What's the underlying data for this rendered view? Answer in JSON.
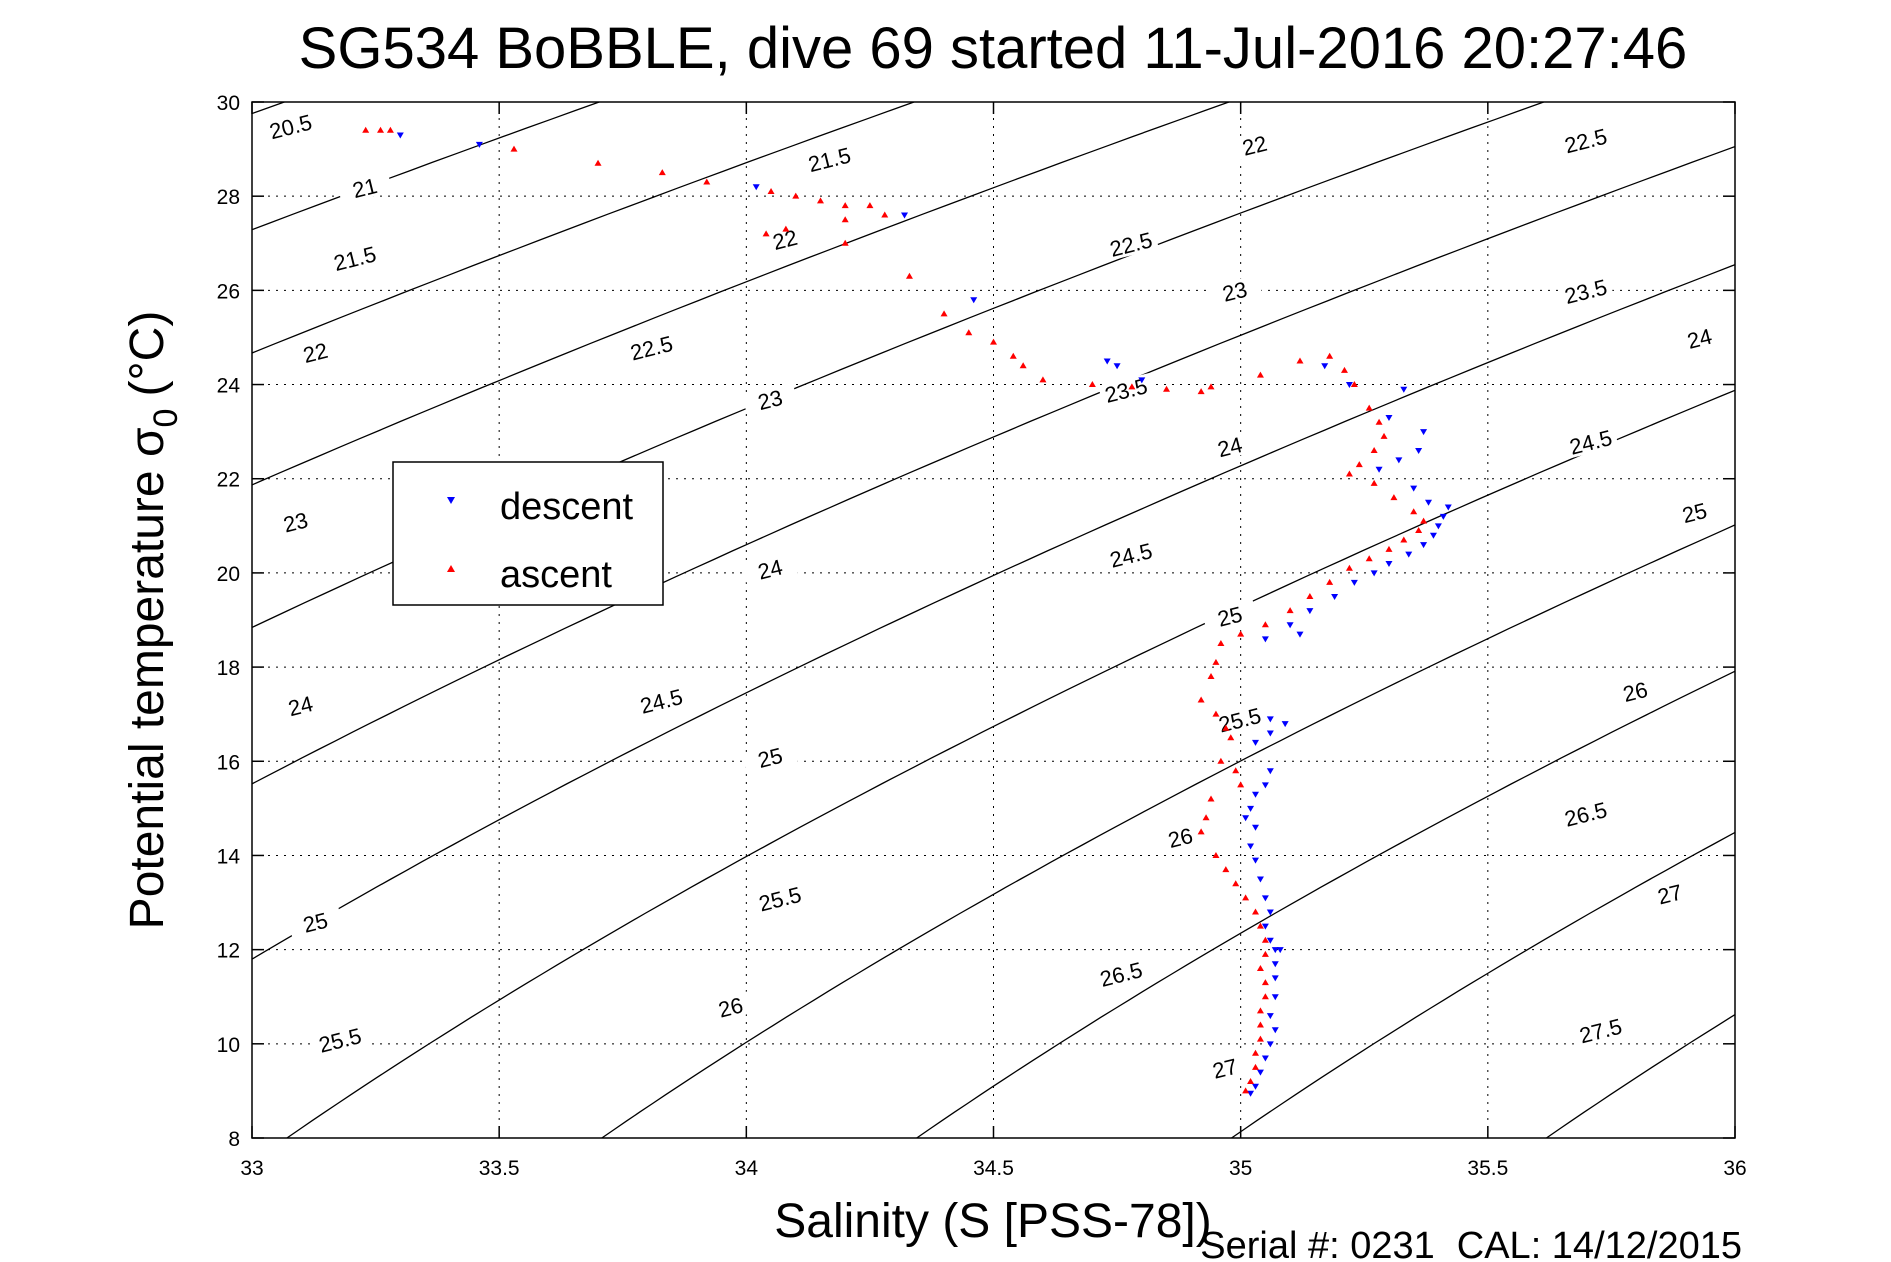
{
  "chart_data": {
    "type": "scatter",
    "title": "SG534 BoBBLE, dive 69 started 11-Jul-2016 20:27:46",
    "xlabel": "Salinity (S [PSS-78])",
    "ylabel": "Potential temperature σ",
    "ylabel_sub": "0",
    "ylabel_unit": "(°C)",
    "xlim": [
      33,
      36
    ],
    "ylim": [
      8,
      30
    ],
    "grid": true,
    "xticks": [
      "33",
      "33.5",
      "34",
      "34.5",
      "35",
      "35.5",
      "36"
    ],
    "yticks": [
      "8",
      "10",
      "12",
      "14",
      "16",
      "18",
      "20",
      "22",
      "24",
      "26",
      "28",
      "30"
    ],
    "legend": {
      "placement": "center-left",
      "entries": [
        {
          "name": "descent",
          "color": "#0000ff",
          "marker": "triangle-down"
        },
        {
          "name": "ascent",
          "color": "#ff0000",
          "marker": "triangle-up"
        }
      ]
    },
    "density_contours": {
      "color": "#000000",
      "levels": [
        20.5,
        21,
        21.5,
        22,
        22.5,
        23,
        23.5,
        24,
        24.5,
        25,
        25.5,
        26,
        26.5,
        27,
        27.5
      ],
      "label_points": [
        {
          "text": "20.5",
          "x": 33.08,
          "y": 29.4
        },
        {
          "text": "21",
          "x": 33.23,
          "y": 28.1
        },
        {
          "text": "21.5",
          "x": 33.21,
          "y": 26.6
        },
        {
          "text": "22",
          "x": 33.13,
          "y": 24.6
        },
        {
          "text": "22.5",
          "x": 33.81,
          "y": 24.7
        },
        {
          "text": "23",
          "x": 33.09,
          "y": 21.0
        },
        {
          "text": "23",
          "x": 34.05,
          "y": 23.6
        },
        {
          "text": "24",
          "x": 33.1,
          "y": 17.1
        },
        {
          "text": "24.5",
          "x": 33.83,
          "y": 17.2
        },
        {
          "text": "24",
          "x": 34.05,
          "y": 20.0
        },
        {
          "text": "25",
          "x": 34.05,
          "y": 16.0
        },
        {
          "text": "25",
          "x": 33.13,
          "y": 12.5
        },
        {
          "text": "25.5",
          "x": 34.07,
          "y": 13.0
        },
        {
          "text": "25.5",
          "x": 33.18,
          "y": 10.0
        },
        {
          "text": "26",
          "x": 33.97,
          "y": 10.7
        },
        {
          "text": "21.5",
          "x": 34.17,
          "y": 28.7
        },
        {
          "text": "22",
          "x": 34.08,
          "y": 27.0
        },
        {
          "text": "22",
          "x": 35.03,
          "y": 29.0
        },
        {
          "text": "22.5",
          "x": 34.78,
          "y": 26.9
        },
        {
          "text": "23",
          "x": 34.99,
          "y": 25.9
        },
        {
          "text": "23.5",
          "x": 34.77,
          "y": 23.8
        },
        {
          "text": "24",
          "x": 34.98,
          "y": 22.6
        },
        {
          "text": "24.5",
          "x": 34.78,
          "y": 20.3
        },
        {
          "text": "25",
          "x": 34.98,
          "y": 19.0
        },
        {
          "text": "25.5",
          "x": 35.0,
          "y": 16.8
        },
        {
          "text": "26",
          "x": 34.88,
          "y": 14.3
        },
        {
          "text": "26.5",
          "x": 34.76,
          "y": 11.4
        },
        {
          "text": "27",
          "x": 34.97,
          "y": 9.4
        },
        {
          "text": "22.5",
          "x": 35.7,
          "y": 29.1
        },
        {
          "text": "23.5",
          "x": 35.7,
          "y": 25.9
        },
        {
          "text": "24",
          "x": 35.93,
          "y": 24.9
        },
        {
          "text": "24.5",
          "x": 35.71,
          "y": 22.7
        },
        {
          "text": "25",
          "x": 35.92,
          "y": 21.2
        },
        {
          "text": "26",
          "x": 35.8,
          "y": 17.4
        },
        {
          "text": "26.5",
          "x": 35.7,
          "y": 14.8
        },
        {
          "text": "27",
          "x": 35.87,
          "y": 13.1
        },
        {
          "text": "27.5",
          "x": 35.73,
          "y": 10.2
        }
      ]
    },
    "series": [
      {
        "name": "descent",
        "color": "#0000ff",
        "marker": "triangle-down",
        "points": [
          [
            33.3,
            29.3
          ],
          [
            33.46,
            29.1
          ],
          [
            34.02,
            28.2
          ],
          [
            34.32,
            27.6
          ],
          [
            34.46,
            25.8
          ],
          [
            34.73,
            24.5
          ],
          [
            34.75,
            24.4
          ],
          [
            34.8,
            24.1
          ],
          [
            35.17,
            24.4
          ],
          [
            35.22,
            24.0
          ],
          [
            35.33,
            23.9
          ],
          [
            35.3,
            23.3
          ],
          [
            35.37,
            23.0
          ],
          [
            35.36,
            22.6
          ],
          [
            35.32,
            22.4
          ],
          [
            35.28,
            22.2
          ],
          [
            35.35,
            21.8
          ],
          [
            35.38,
            21.5
          ],
          [
            35.42,
            21.4
          ],
          [
            35.41,
            21.2
          ],
          [
            35.4,
            21.0
          ],
          [
            35.39,
            20.8
          ],
          [
            35.37,
            20.6
          ],
          [
            35.34,
            20.4
          ],
          [
            35.3,
            20.2
          ],
          [
            35.27,
            20.0
          ],
          [
            35.23,
            19.8
          ],
          [
            35.19,
            19.5
          ],
          [
            35.14,
            19.2
          ],
          [
            35.1,
            18.9
          ],
          [
            35.05,
            18.6
          ],
          [
            35.12,
            18.7
          ],
          [
            35.06,
            16.9
          ],
          [
            35.09,
            16.8
          ],
          [
            35.06,
            16.6
          ],
          [
            35.03,
            16.4
          ],
          [
            35.06,
            15.8
          ],
          [
            35.05,
            15.5
          ],
          [
            35.03,
            15.3
          ],
          [
            35.02,
            15.0
          ],
          [
            35.01,
            14.8
          ],
          [
            35.03,
            14.6
          ],
          [
            35.02,
            14.2
          ],
          [
            35.03,
            13.9
          ],
          [
            35.04,
            13.5
          ],
          [
            35.05,
            13.1
          ],
          [
            35.06,
            12.8
          ],
          [
            35.05,
            12.5
          ],
          [
            35.06,
            12.2
          ],
          [
            35.07,
            12.0
          ],
          [
            35.08,
            12.0
          ],
          [
            35.07,
            11.7
          ],
          [
            35.07,
            11.4
          ],
          [
            35.07,
            11.0
          ],
          [
            35.06,
            10.6
          ],
          [
            35.07,
            10.3
          ],
          [
            35.06,
            10.0
          ],
          [
            35.05,
            9.7
          ],
          [
            35.04,
            9.4
          ],
          [
            35.03,
            9.1
          ],
          [
            35.02,
            8.95
          ]
        ]
      },
      {
        "name": "ascent",
        "color": "#ff0000",
        "marker": "triangle-up",
        "points": [
          [
            33.23,
            29.4
          ],
          [
            33.26,
            29.4
          ],
          [
            33.28,
            29.4
          ],
          [
            33.53,
            29.0
          ],
          [
            33.7,
            28.7
          ],
          [
            33.83,
            28.5
          ],
          [
            33.92,
            28.3
          ],
          [
            34.05,
            28.1
          ],
          [
            34.1,
            28.0
          ],
          [
            34.15,
            27.9
          ],
          [
            34.2,
            27.8
          ],
          [
            34.25,
            27.8
          ],
          [
            34.28,
            27.6
          ],
          [
            34.2,
            27.5
          ],
          [
            34.04,
            27.2
          ],
          [
            34.08,
            27.3
          ],
          [
            34.2,
            27.0
          ],
          [
            34.33,
            26.3
          ],
          [
            34.4,
            25.5
          ],
          [
            34.45,
            25.1
          ],
          [
            34.5,
            24.9
          ],
          [
            34.54,
            24.6
          ],
          [
            34.56,
            24.4
          ],
          [
            34.6,
            24.1
          ],
          [
            34.7,
            24.0
          ],
          [
            34.78,
            23.95
          ],
          [
            34.85,
            23.9
          ],
          [
            34.92,
            23.85
          ],
          [
            34.94,
            23.95
          ],
          [
            35.04,
            24.2
          ],
          [
            35.12,
            24.5
          ],
          [
            35.18,
            24.6
          ],
          [
            35.21,
            24.3
          ],
          [
            35.23,
            24.0
          ],
          [
            35.26,
            23.5
          ],
          [
            35.28,
            23.2
          ],
          [
            35.29,
            22.9
          ],
          [
            35.27,
            22.6
          ],
          [
            35.24,
            22.3
          ],
          [
            35.22,
            22.1
          ],
          [
            35.27,
            21.9
          ],
          [
            35.31,
            21.6
          ],
          [
            35.35,
            21.3
          ],
          [
            35.37,
            21.1
          ],
          [
            35.36,
            20.9
          ],
          [
            35.33,
            20.7
          ],
          [
            35.3,
            20.5
          ],
          [
            35.26,
            20.3
          ],
          [
            35.22,
            20.1
          ],
          [
            35.18,
            19.8
          ],
          [
            35.14,
            19.5
          ],
          [
            35.1,
            19.2
          ],
          [
            35.05,
            18.9
          ],
          [
            35.0,
            18.7
          ],
          [
            34.96,
            18.5
          ],
          [
            34.95,
            18.1
          ],
          [
            34.94,
            17.8
          ],
          [
            34.92,
            17.3
          ],
          [
            34.95,
            17.0
          ],
          [
            34.97,
            16.7
          ],
          [
            34.98,
            16.5
          ],
          [
            34.96,
            16.0
          ],
          [
            34.99,
            15.8
          ],
          [
            35.0,
            15.5
          ],
          [
            34.94,
            15.2
          ],
          [
            34.93,
            14.8
          ],
          [
            34.92,
            14.5
          ],
          [
            34.95,
            14.0
          ],
          [
            34.97,
            13.7
          ],
          [
            34.99,
            13.4
          ],
          [
            35.01,
            13.1
          ],
          [
            35.03,
            12.8
          ],
          [
            35.04,
            12.5
          ],
          [
            35.05,
            12.2
          ],
          [
            35.05,
            11.9
          ],
          [
            35.04,
            11.6
          ],
          [
            35.05,
            11.3
          ],
          [
            35.05,
            11.0
          ],
          [
            35.04,
            10.7
          ],
          [
            35.04,
            10.4
          ],
          [
            35.04,
            10.1
          ],
          [
            35.03,
            9.8
          ],
          [
            35.03,
            9.5
          ],
          [
            35.02,
            9.2
          ],
          [
            35.01,
            9.0
          ]
        ]
      }
    ]
  },
  "footer": {
    "serial_label": "Serial #: 0231",
    "cal_label": "CAL: 14/12/2015"
  }
}
